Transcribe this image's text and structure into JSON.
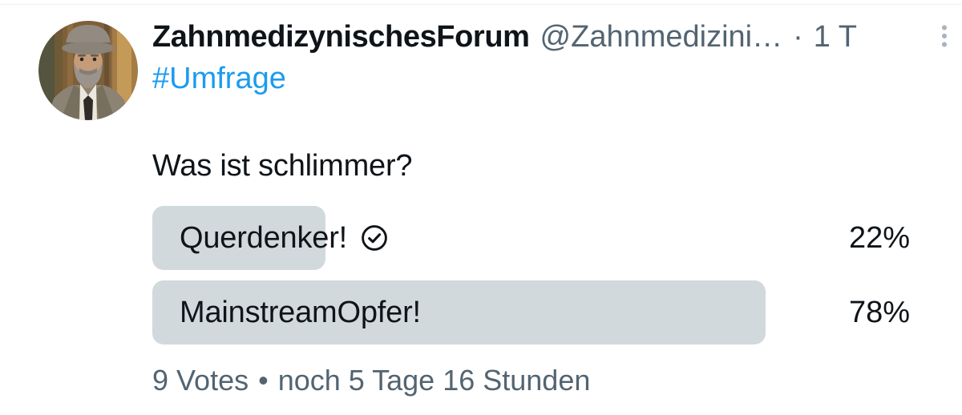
{
  "tweet": {
    "author": {
      "name": "ZahnmedizynischesForum",
      "handle": "@Zahnmedizini…",
      "separator": "·",
      "timestamp": "1 T"
    },
    "icons": {
      "overflow_menu": "kebab-vertical-icon",
      "vote_check": "check-circle-icon"
    },
    "hashtag": "#Umfrage",
    "question": "Was ist schlimmer?",
    "poll": {
      "options": [
        {
          "label": "Querdenker!",
          "percent": "22%",
          "percent_value": 22,
          "voted": true
        },
        {
          "label": "MainstreamOpfer!",
          "percent": "78%",
          "percent_value": 78,
          "voted": false
        }
      ],
      "votes": "9 Votes",
      "separator": "•",
      "time_remaining": "noch 5 Tage 16 Stunden"
    },
    "colors": {
      "link_blue": "#1d9bf0",
      "text_primary": "#0f1419",
      "text_secondary": "#536471",
      "poll_bar": "#d2d9dd"
    }
  }
}
